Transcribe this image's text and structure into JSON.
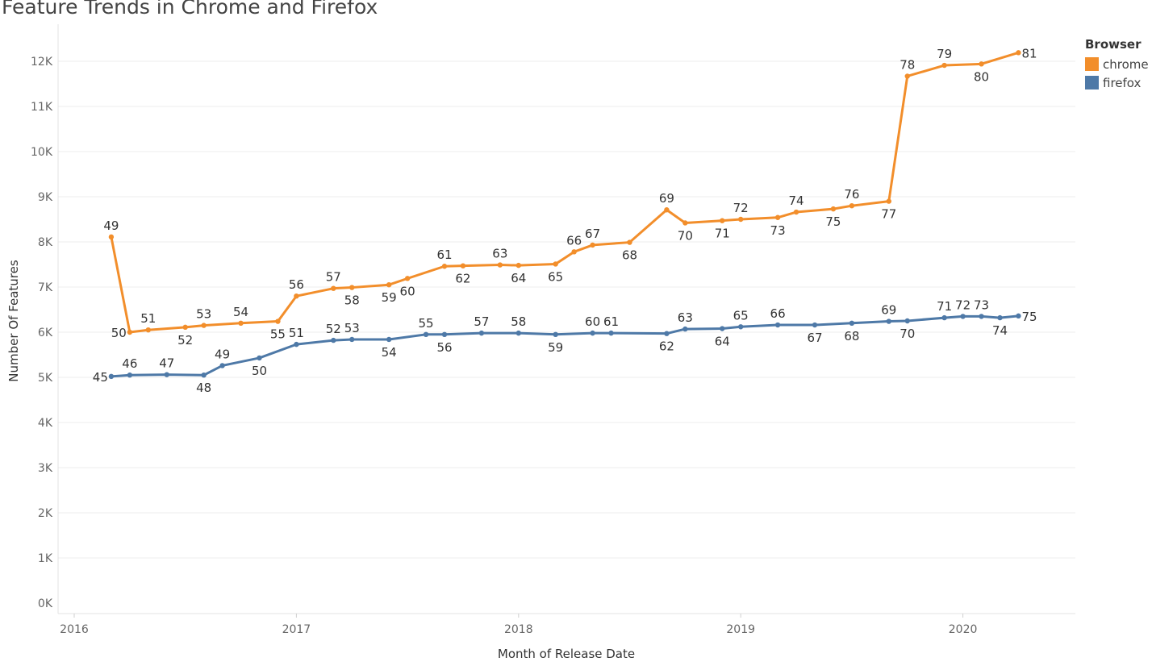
{
  "title": "Feature Trends in Chrome and Firefox",
  "legend": {
    "title": "Browser",
    "items": [
      {
        "label": "chrome",
        "color": "#f28e2b"
      },
      {
        "label": "firefox",
        "color": "#4e79a7"
      }
    ]
  },
  "chart_data": {
    "type": "line",
    "title": "Feature Trends in Chrome and Firefox",
    "xlabel": "Month of Release Date",
    "ylabel": "Number Of Features",
    "x_ticks": [
      "2016",
      "2017",
      "2018",
      "2019",
      "2020"
    ],
    "y_ticks": [
      "0K",
      "1K",
      "2K",
      "3K",
      "4K",
      "5K",
      "6K",
      "7K",
      "8K",
      "9K",
      "10K",
      "11K",
      "12K"
    ],
    "ylim": [
      0,
      12500
    ],
    "xlim": [
      "2016-01",
      "2020-06"
    ],
    "grid": "horizontal",
    "legend_position": "top-right",
    "series": [
      {
        "name": "chrome",
        "color": "#f28e2b",
        "points": [
          {
            "x": "2016-03",
            "y": 8110,
            "label": "49",
            "pos": "above"
          },
          {
            "x": "2016-04",
            "y": 6000,
            "label": "50",
            "pos": "left"
          },
          {
            "x": "2016-05",
            "y": 6050,
            "label": "51",
            "pos": "above"
          },
          {
            "x": "2016-07",
            "y": 6110,
            "label": "52",
            "pos": "below"
          },
          {
            "x": "2016-08",
            "y": 6150,
            "label": "53",
            "pos": "above"
          },
          {
            "x": "2016-10",
            "y": 6200,
            "label": "54",
            "pos": "above"
          },
          {
            "x": "2016-12",
            "y": 6240,
            "label": "55",
            "pos": "below"
          },
          {
            "x": "2017-01",
            "y": 6800,
            "label": "56",
            "pos": "above"
          },
          {
            "x": "2017-03",
            "y": 6970,
            "label": "57",
            "pos": "above"
          },
          {
            "x": "2017-04",
            "y": 6990,
            "label": "58",
            "pos": "below"
          },
          {
            "x": "2017-06",
            "y": 7050,
            "label": "59",
            "pos": "below"
          },
          {
            "x": "2017-07",
            "y": 7190,
            "label": "60",
            "pos": "below"
          },
          {
            "x": "2017-09",
            "y": 7460,
            "label": "61",
            "pos": "above"
          },
          {
            "x": "2017-10",
            "y": 7470,
            "label": "62",
            "pos": "below"
          },
          {
            "x": "2017-12",
            "y": 7490,
            "label": "63",
            "pos": "above"
          },
          {
            "x": "2018-01",
            "y": 7480,
            "label": "64",
            "pos": "below"
          },
          {
            "x": "2018-03",
            "y": 7510,
            "label": "65",
            "pos": "below"
          },
          {
            "x": "2018-04",
            "y": 7780,
            "label": "66",
            "pos": "above"
          },
          {
            "x": "2018-05",
            "y": 7930,
            "label": "67",
            "pos": "above"
          },
          {
            "x": "2018-07",
            "y": 7990,
            "label": "68",
            "pos": "below"
          },
          {
            "x": "2018-09",
            "y": 8710,
            "label": "69",
            "pos": "above"
          },
          {
            "x": "2018-10",
            "y": 8420,
            "label": "70",
            "pos": "below"
          },
          {
            "x": "2018-12",
            "y": 8470,
            "label": "71",
            "pos": "below"
          },
          {
            "x": "2019-01",
            "y": 8500,
            "label": "72",
            "pos": "above"
          },
          {
            "x": "2019-03",
            "y": 8540,
            "label": "73",
            "pos": "below"
          },
          {
            "x": "2019-04",
            "y": 8660,
            "label": "74",
            "pos": "above"
          },
          {
            "x": "2019-06",
            "y": 8730,
            "label": "75",
            "pos": "below"
          },
          {
            "x": "2019-07",
            "y": 8800,
            "label": "76",
            "pos": "above"
          },
          {
            "x": "2019-09",
            "y": 8900,
            "label": "77",
            "pos": "below"
          },
          {
            "x": "2019-10",
            "y": 11670,
            "label": "78",
            "pos": "above"
          },
          {
            "x": "2019-12",
            "y": 11910,
            "label": "79",
            "pos": "above"
          },
          {
            "x": "2020-02",
            "y": 11940,
            "label": "80",
            "pos": "below"
          },
          {
            "x": "2020-04",
            "y": 12190,
            "label": "81",
            "pos": "right"
          }
        ]
      },
      {
        "name": "firefox",
        "color": "#4e79a7",
        "points": [
          {
            "x": "2016-03",
            "y": 5020,
            "label": "45",
            "pos": "left"
          },
          {
            "x": "2016-04",
            "y": 5050,
            "label": "46",
            "pos": "above"
          },
          {
            "x": "2016-06",
            "y": 5060,
            "label": "47",
            "pos": "above"
          },
          {
            "x": "2016-08",
            "y": 5050,
            "label": "48",
            "pos": "below"
          },
          {
            "x": "2016-09",
            "y": 5260,
            "label": "49",
            "pos": "above"
          },
          {
            "x": "2016-11",
            "y": 5430,
            "label": "50",
            "pos": "below"
          },
          {
            "x": "2017-01",
            "y": 5730,
            "label": "51",
            "pos": "above"
          },
          {
            "x": "2017-03",
            "y": 5820,
            "label": "52",
            "pos": "above"
          },
          {
            "x": "2017-04",
            "y": 5840,
            "label": "53",
            "pos": "above"
          },
          {
            "x": "2017-06",
            "y": 5840,
            "label": "54",
            "pos": "below"
          },
          {
            "x": "2017-08",
            "y": 5950,
            "label": "55",
            "pos": "above"
          },
          {
            "x": "2017-09",
            "y": 5950,
            "label": "56",
            "pos": "below"
          },
          {
            "x": "2017-11",
            "y": 5980,
            "label": "57",
            "pos": "above"
          },
          {
            "x": "2018-01",
            "y": 5980,
            "label": "58",
            "pos": "above"
          },
          {
            "x": "2018-03",
            "y": 5950,
            "label": "59",
            "pos": "below"
          },
          {
            "x": "2018-05",
            "y": 5980,
            "label": "60",
            "pos": "above"
          },
          {
            "x": "2018-06",
            "y": 5980,
            "label": "61",
            "pos": "above"
          },
          {
            "x": "2018-09",
            "y": 5970,
            "label": "62",
            "pos": "below"
          },
          {
            "x": "2018-10",
            "y": 6070,
            "label": "63",
            "pos": "above"
          },
          {
            "x": "2018-12",
            "y": 6080,
            "label": "64",
            "pos": "below"
          },
          {
            "x": "2019-01",
            "y": 6120,
            "label": "65",
            "pos": "above"
          },
          {
            "x": "2019-03",
            "y": 6160,
            "label": "66",
            "pos": "above"
          },
          {
            "x": "2019-05",
            "y": 6160,
            "label": "67",
            "pos": "below"
          },
          {
            "x": "2019-07",
            "y": 6200,
            "label": "68",
            "pos": "below"
          },
          {
            "x": "2019-09",
            "y": 6240,
            "label": "69",
            "pos": "above"
          },
          {
            "x": "2019-10",
            "y": 6250,
            "label": "70",
            "pos": "below"
          },
          {
            "x": "2019-12",
            "y": 6320,
            "label": "71",
            "pos": "above"
          },
          {
            "x": "2020-01",
            "y": 6350,
            "label": "72",
            "pos": "above"
          },
          {
            "x": "2020-02",
            "y": 6350,
            "label": "73",
            "pos": "above"
          },
          {
            "x": "2020-03",
            "y": 6320,
            "label": "74",
            "pos": "below"
          },
          {
            "x": "2020-04",
            "y": 6360,
            "label": "75",
            "pos": "right"
          }
        ]
      }
    ]
  }
}
